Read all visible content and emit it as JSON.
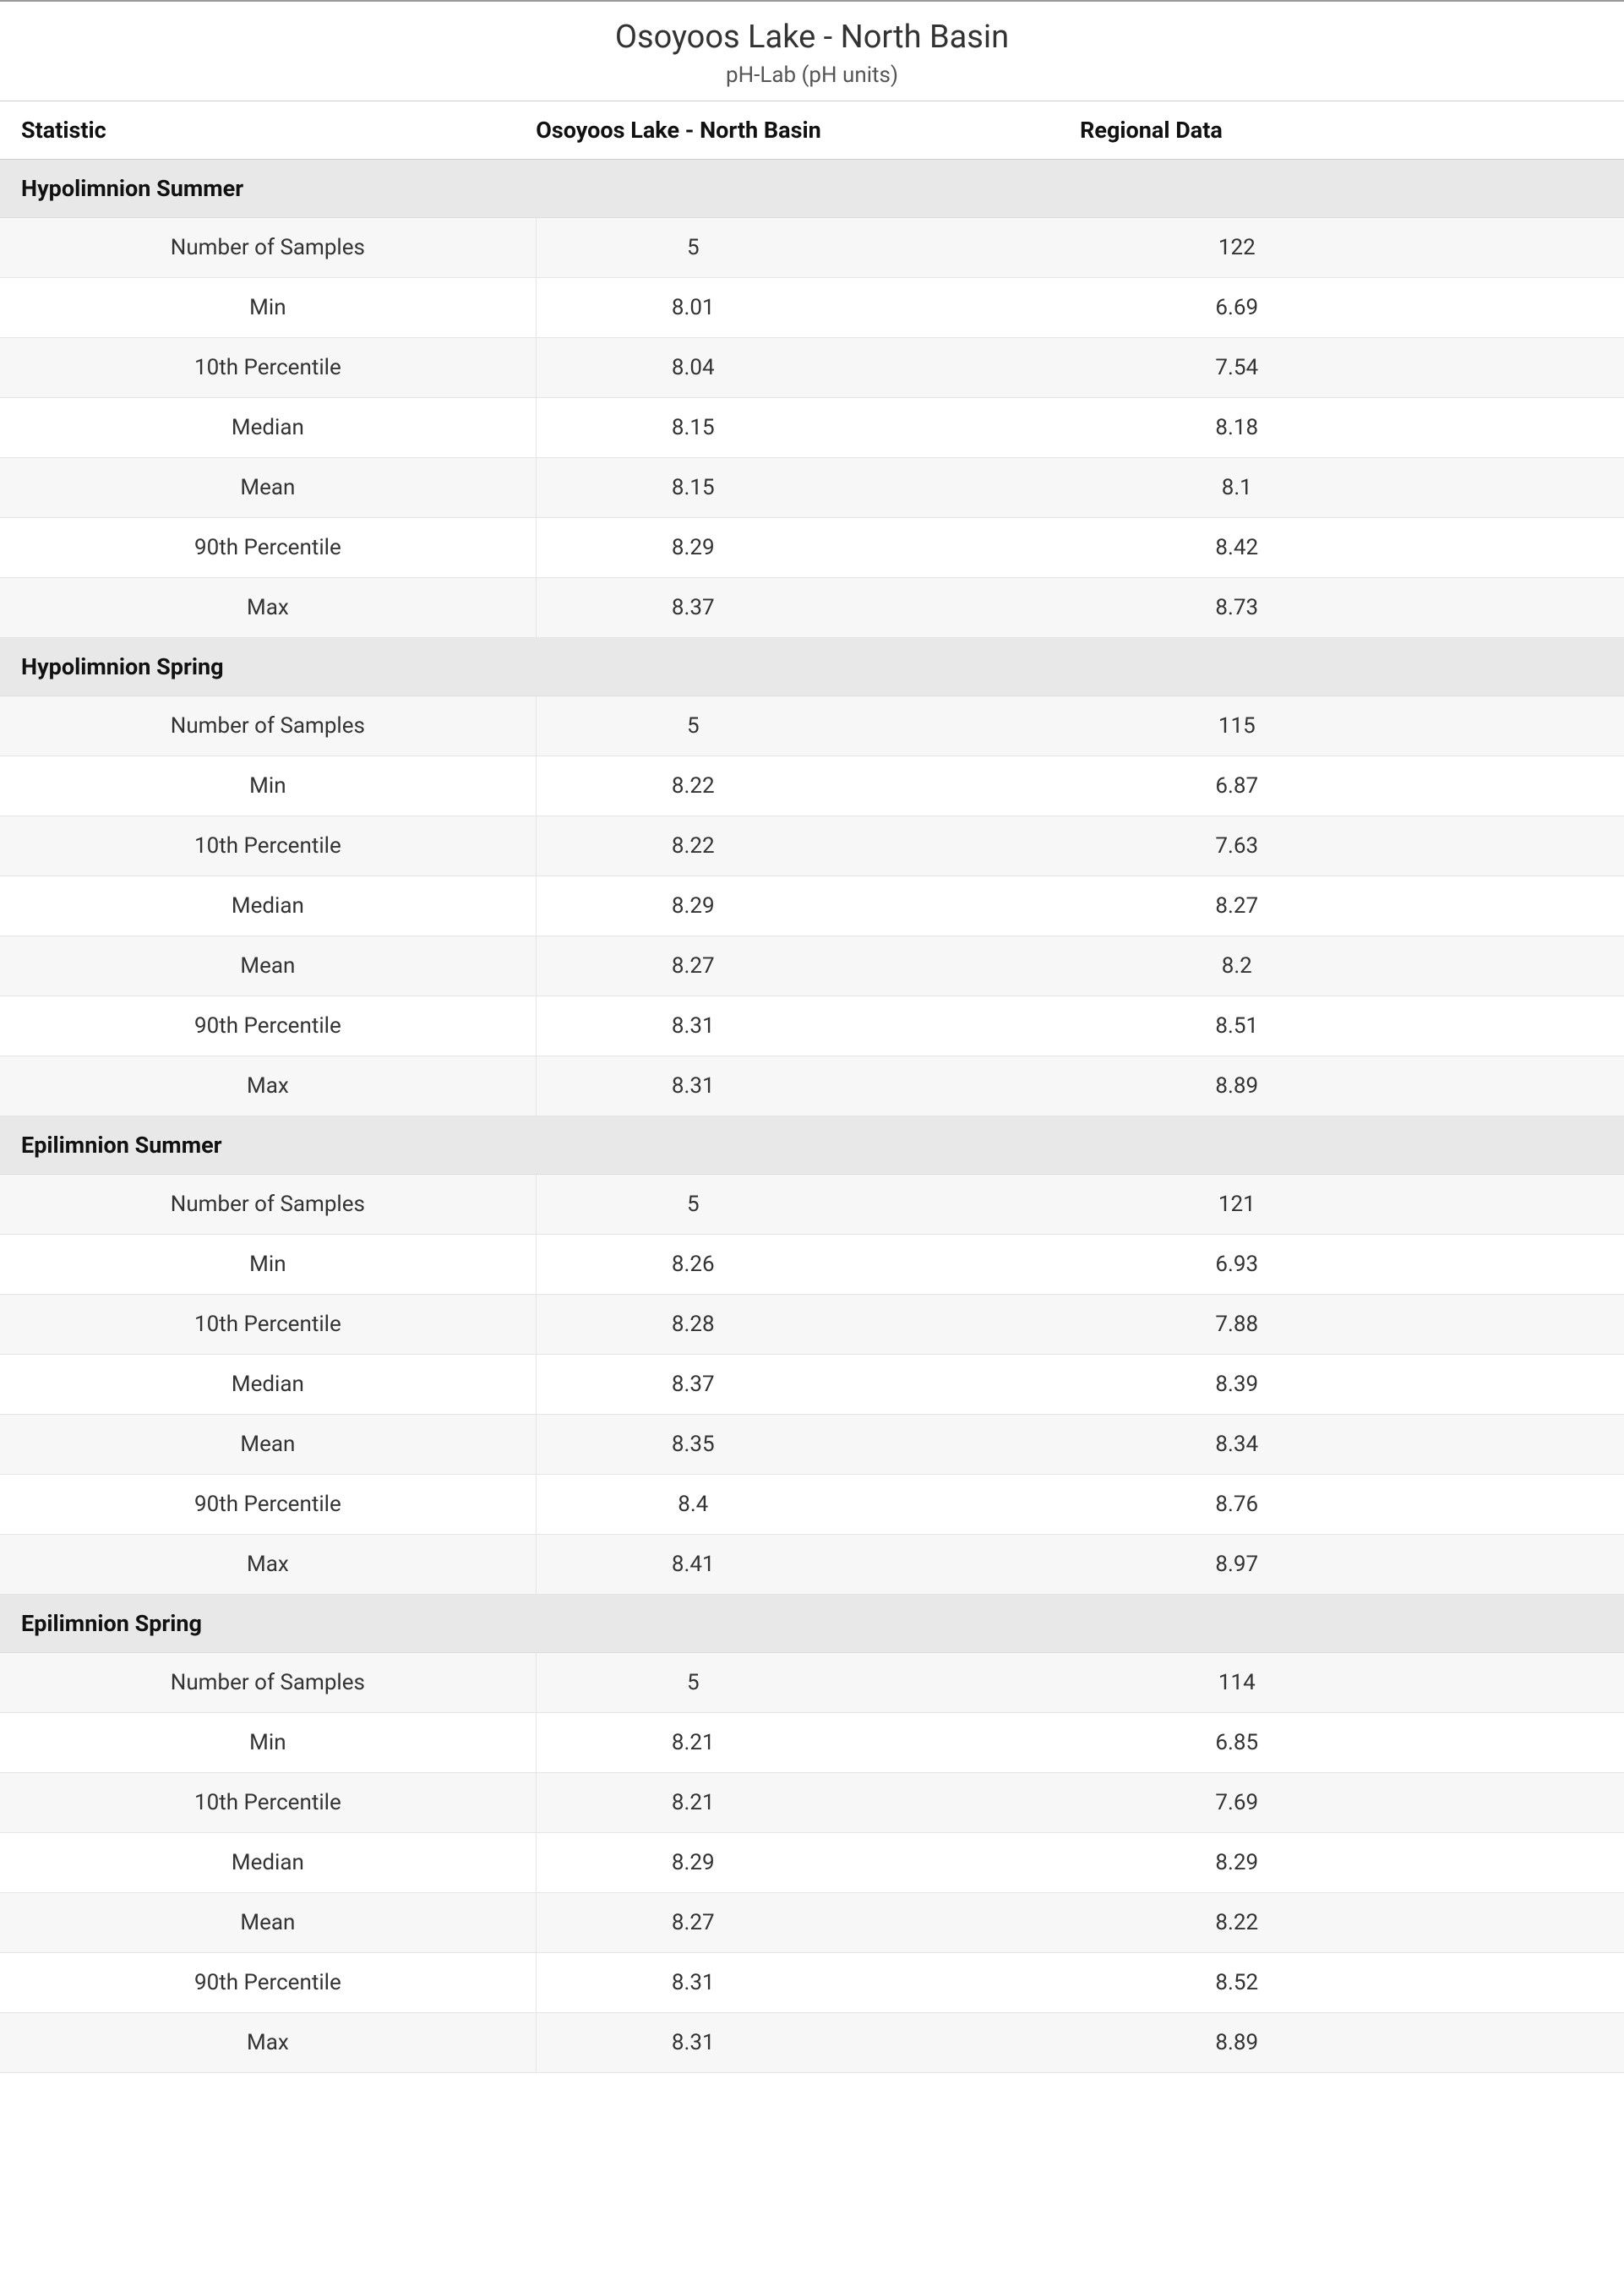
{
  "header": {
    "title": "Osoyoos Lake - North Basin",
    "subtitle": "pH-Lab (pH units)"
  },
  "columns": {
    "statistic": "Statistic",
    "site": "Osoyoos Lake - North Basin",
    "regional": "Regional Data"
  },
  "stat_labels": {
    "num_samples": "Number of Samples",
    "min": "Min",
    "p10": "10th Percentile",
    "median": "Median",
    "mean": "Mean",
    "p90": "90th Percentile",
    "max": "Max"
  },
  "sections": [
    {
      "name": "Hypolimnion Summer",
      "rows": [
        {
          "stat": "num_samples",
          "site": "5",
          "regional": "122"
        },
        {
          "stat": "min",
          "site": "8.01",
          "regional": "6.69"
        },
        {
          "stat": "p10",
          "site": "8.04",
          "regional": "7.54"
        },
        {
          "stat": "median",
          "site": "8.15",
          "regional": "8.18"
        },
        {
          "stat": "mean",
          "site": "8.15",
          "regional": "8.1"
        },
        {
          "stat": "p90",
          "site": "8.29",
          "regional": "8.42"
        },
        {
          "stat": "max",
          "site": "8.37",
          "regional": "8.73"
        }
      ]
    },
    {
      "name": "Hypolimnion Spring",
      "rows": [
        {
          "stat": "num_samples",
          "site": "5",
          "regional": "115"
        },
        {
          "stat": "min",
          "site": "8.22",
          "regional": "6.87"
        },
        {
          "stat": "p10",
          "site": "8.22",
          "regional": "7.63"
        },
        {
          "stat": "median",
          "site": "8.29",
          "regional": "8.27"
        },
        {
          "stat": "mean",
          "site": "8.27",
          "regional": "8.2"
        },
        {
          "stat": "p90",
          "site": "8.31",
          "regional": "8.51"
        },
        {
          "stat": "max",
          "site": "8.31",
          "regional": "8.89"
        }
      ]
    },
    {
      "name": "Epilimnion Summer",
      "rows": [
        {
          "stat": "num_samples",
          "site": "5",
          "regional": "121"
        },
        {
          "stat": "min",
          "site": "8.26",
          "regional": "6.93"
        },
        {
          "stat": "p10",
          "site": "8.28",
          "regional": "7.88"
        },
        {
          "stat": "median",
          "site": "8.37",
          "regional": "8.39"
        },
        {
          "stat": "mean",
          "site": "8.35",
          "regional": "8.34"
        },
        {
          "stat": "p90",
          "site": "8.4",
          "regional": "8.76"
        },
        {
          "stat": "max",
          "site": "8.41",
          "regional": "8.97"
        }
      ]
    },
    {
      "name": "Epilimnion Spring",
      "rows": [
        {
          "stat": "num_samples",
          "site": "5",
          "regional": "114"
        },
        {
          "stat": "min",
          "site": "8.21",
          "regional": "6.85"
        },
        {
          "stat": "p10",
          "site": "8.21",
          "regional": "7.69"
        },
        {
          "stat": "median",
          "site": "8.29",
          "regional": "8.29"
        },
        {
          "stat": "mean",
          "site": "8.27",
          "regional": "8.22"
        },
        {
          "stat": "p90",
          "site": "8.31",
          "regional": "8.52"
        },
        {
          "stat": "max",
          "site": "8.31",
          "regional": "8.89"
        }
      ]
    }
  ]
}
